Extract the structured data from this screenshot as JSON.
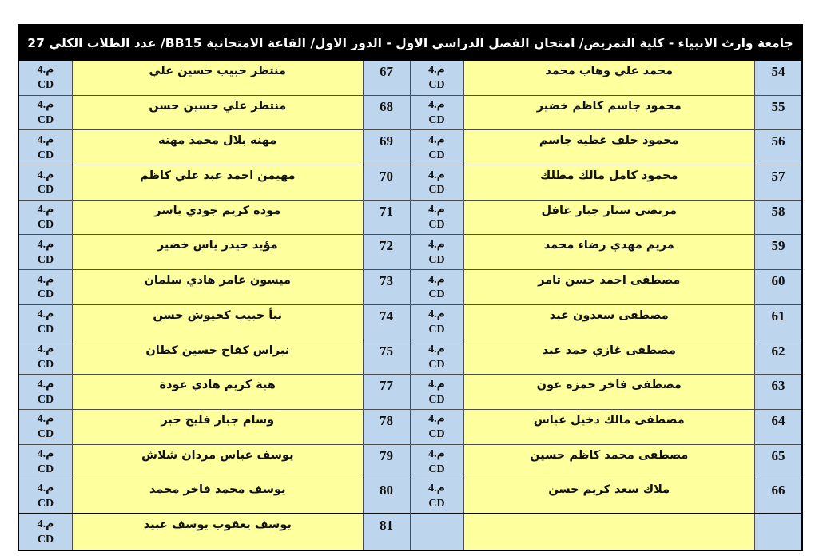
{
  "header": {
    "title": "جامعة وارث الانبياء - كلية التمريض/ امتحان الفصل الدراسي الاول - الدور الاول/ القاعة الامتحانية  BB15/ عدد الطلاب الكلي 27"
  },
  "colors": {
    "cell_blue": "#bdd6ee",
    "cell_yellow": "#feff9d",
    "grid_line": "#4d4d4d",
    "header_bg": "#000000",
    "header_fg": "#ffffff"
  },
  "groups": [
    {
      "position": "right",
      "rows": [
        {
          "num": "54",
          "name": "محمد علي وهاب محمد",
          "stage": "م.4",
          "section": "CD"
        },
        {
          "num": "55",
          "name": "محمود جاسم كاظم خضير",
          "stage": "م.4",
          "section": "CD"
        },
        {
          "num": "56",
          "name": "محمود خلف عطيه جاسم",
          "stage": "م.4",
          "section": "CD"
        },
        {
          "num": "57",
          "name": "محمود كامل مالك مطلك",
          "stage": "م.4",
          "section": "CD"
        },
        {
          "num": "58",
          "name": "مرتضى ستار جبار غافل",
          "stage": "م.4",
          "section": "CD"
        },
        {
          "num": "59",
          "name": "مريم مهدي رضاء محمد",
          "stage": "م.4",
          "section": "CD"
        },
        {
          "num": "60",
          "name": "مصطفى احمد حسن ثامر",
          "stage": "م.4",
          "section": "CD"
        },
        {
          "num": "61",
          "name": "مصطفى سعدون عبد",
          "stage": "م.4",
          "section": "CD"
        },
        {
          "num": "62",
          "name": "مصطفى غازي حمد عبد",
          "stage": "م.4",
          "section": "CD"
        },
        {
          "num": "63",
          "name": "مصطفى فاخر حمزه عون",
          "stage": "م.4",
          "section": "CD"
        },
        {
          "num": "64",
          "name": "مصطفى مالك دخيل عباس",
          "stage": "م.4",
          "section": "CD"
        },
        {
          "num": "65",
          "name": "مصطفى محمد كاظم حسين",
          "stage": "م.4",
          "section": "CD"
        },
        {
          "num": "66",
          "name": "ملاك سعد كريم حسن",
          "stage": "م.4",
          "section": "CD"
        },
        {
          "num": "",
          "name": "",
          "stage": "",
          "section": ""
        }
      ]
    },
    {
      "position": "left",
      "rows": [
        {
          "num": "67",
          "name": "منتظر حبيب حسين علي",
          "stage": "م.4",
          "section": "CD"
        },
        {
          "num": "68",
          "name": "منتظر علي حسين حسن",
          "stage": "م.4",
          "section": "CD"
        },
        {
          "num": "69",
          "name": "مهنه بلال محمد مهنه",
          "stage": "م.4",
          "section": "CD"
        },
        {
          "num": "70",
          "name": "مهيمن احمد عبد علي كاظم",
          "stage": "م.4",
          "section": "CD"
        },
        {
          "num": "71",
          "name": "موده كريم جودي ياسر",
          "stage": "م.4",
          "section": "CD"
        },
        {
          "num": "72",
          "name": "مؤيد حيدر ياس خضير",
          "stage": "م.4",
          "section": "CD"
        },
        {
          "num": "73",
          "name": "ميسون عامر هادي سلمان",
          "stage": "م.4",
          "section": "CD"
        },
        {
          "num": "74",
          "name": "نبأ حبيب كحيوش حسن",
          "stage": "م.4",
          "section": "CD"
        },
        {
          "num": "75",
          "name": "نبراس كفاح حسين كطان",
          "stage": "م.4",
          "section": "CD"
        },
        {
          "num": "77",
          "name": "هبة كريم هادي عودة",
          "stage": "م.4",
          "section": "CD"
        },
        {
          "num": "78",
          "name": "وسام جبار فليح جبر",
          "stage": "م.4",
          "section": "CD"
        },
        {
          "num": "79",
          "name": "يوسف عباس مردان شلاش",
          "stage": "م.4",
          "section": "CD"
        },
        {
          "num": "80",
          "name": "يوسف محمد فاخر محمد",
          "stage": "م.4",
          "section": "CD"
        },
        {
          "num": "81",
          "name": "يوسف يعقوب يوسف عبيد",
          "stage": "م.4",
          "section": "CD"
        }
      ]
    }
  ]
}
